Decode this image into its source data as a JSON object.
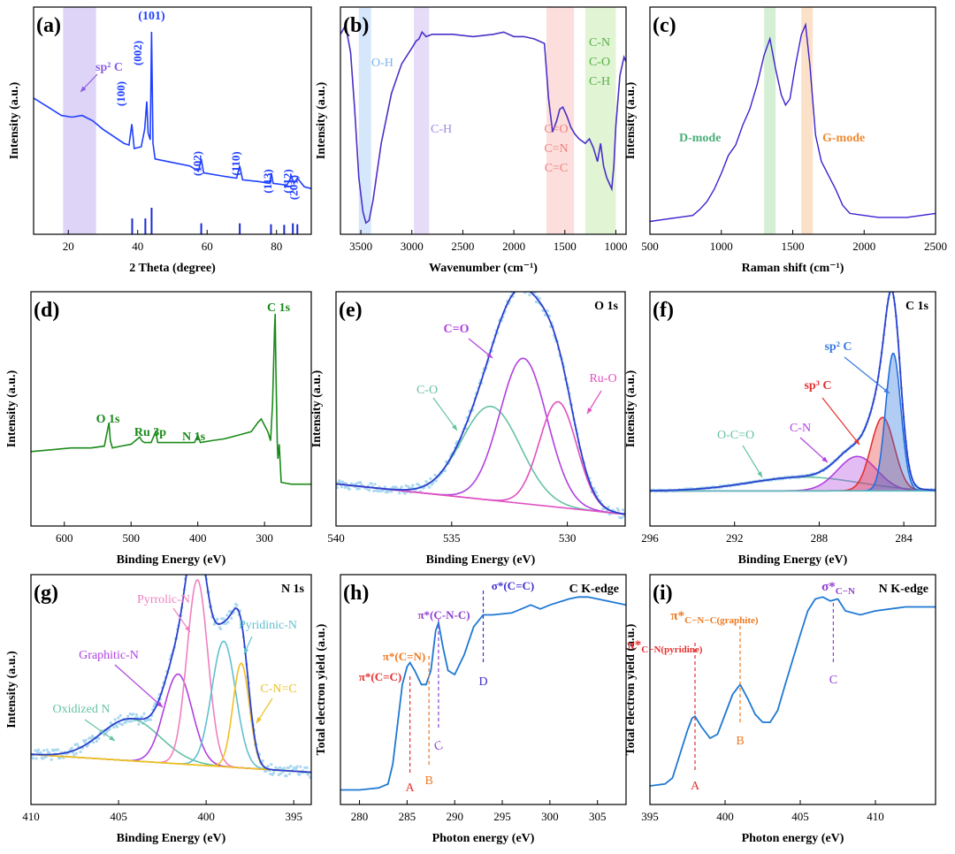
{
  "colors": {
    "blue_xrd": "#1f3fff",
    "purple_ftir": "#4a2fc8",
    "purple_raman": "#3c1fd0",
    "green_xps": "#1a8a1a",
    "envelope": "#2a3fd0",
    "raw_dots": "#a9d8f0",
    "teal": "#66c2a5",
    "violet": "#b040e0",
    "magenta": "#e050c0",
    "pink": "#f080c0",
    "cyan": "#60c0d0",
    "yellow": "#f0c020",
    "red": "#e53030",
    "orange": "#f07820",
    "xas_blue": "#1f78d4",
    "label_blue": "#3a7be0"
  },
  "chart_data": [
    {
      "panel": "(a)",
      "type": "line",
      "xlabel": "2 Theta (degree)",
      "ylabel": "Intensity (a.u.)",
      "xlim": [
        10,
        90
      ],
      "xticks": [
        20,
        40,
        60,
        80
      ],
      "band": {
        "range": [
          18.5,
          28
        ],
        "color": "#d8ccf6"
      },
      "band_label": "sp² C",
      "series": [
        {
          "x": [
            10,
            14,
            18,
            21,
            24,
            27,
            30,
            33,
            36,
            37.5,
            38.3,
            39,
            41,
            42,
            42.6,
            43,
            43.6,
            44.0,
            44.4,
            45,
            50,
            55,
            57.5,
            58.3,
            59,
            65,
            68.5,
            69.4,
            70.2,
            75,
            78,
            78.5,
            79,
            83,
            84.3,
            85,
            86,
            88,
            90
          ],
          "y": [
            0.62,
            0.57,
            0.52,
            0.51,
            0.52,
            0.49,
            0.44,
            0.4,
            0.36,
            0.35,
            0.47,
            0.33,
            0.34,
            0.44,
            0.6,
            0.42,
            0.38,
            1.0,
            0.36,
            0.27,
            0.25,
            0.23,
            0.2,
            0.27,
            0.19,
            0.17,
            0.16,
            0.23,
            0.15,
            0.14,
            0.13,
            0.19,
            0.13,
            0.12,
            0.17,
            0.13,
            0.16,
            0.11,
            0.1
          ]
        }
      ],
      "peak_labels": [
        {
          "text": "(100)",
          "x": 38.3
        },
        {
          "text": "(002)",
          "x": 42.6
        },
        {
          "text": "(101)",
          "x": 44.0
        },
        {
          "text": "(102)",
          "x": 58.3
        },
        {
          "text": "(110)",
          "x": 69.4
        },
        {
          "text": "(113)",
          "x": 78.5
        },
        {
          "text": "(112)",
          "x": 84.3
        },
        {
          "text": "(201)",
          "x": 86.0
        }
      ],
      "reference_sticks": [
        {
          "x": 38.4,
          "h": 0.45
        },
        {
          "x": 42.2,
          "h": 0.45
        },
        {
          "x": 44.0,
          "h": 1.0
        },
        {
          "x": 58.3,
          "h": 0.2
        },
        {
          "x": 69.4,
          "h": 0.2
        },
        {
          "x": 78.4,
          "h": 0.15
        },
        {
          "x": 82.2,
          "h": 0.12
        },
        {
          "x": 84.7,
          "h": 0.2
        },
        {
          "x": 86.0,
          "h": 0.15
        }
      ]
    },
    {
      "panel": "(b)",
      "type": "line",
      "xlabel": "Wavenumber (cm⁻¹)",
      "ylabel": "Intensity (a.u.)",
      "xlim": [
        3700,
        900
      ],
      "xticks": [
        3500,
        3000,
        2500,
        2000,
        1500,
        1000
      ],
      "bands": [
        {
          "range": [
            3520,
            3400
          ],
          "color": "#cfe3fb",
          "label": "O-H"
        },
        {
          "range": [
            2980,
            2830
          ],
          "color": "#e2d6f7",
          "label": "C-H"
        },
        {
          "range": [
            1680,
            1410
          ],
          "color": "#fbd9d6",
          "label": [
            "C=O",
            "C=N",
            "C=C"
          ]
        },
        {
          "range": [
            1300,
            1000
          ],
          "color": "#dcf2cc",
          "label": [
            "C-N",
            "C-O",
            "C-H"
          ]
        }
      ],
      "series": [
        {
          "x": [
            3700,
            3650,
            3600,
            3560,
            3520,
            3480,
            3450,
            3420,
            3380,
            3300,
            3200,
            3100,
            3000,
            2960,
            2930,
            2900,
            2860,
            2800,
            2600,
            2400,
            2200,
            2100,
            2000,
            1900,
            1800,
            1700,
            1660,
            1620,
            1580,
            1550,
            1520,
            1480,
            1440,
            1400,
            1360,
            1300,
            1260,
            1220,
            1180,
            1150,
            1120,
            1090,
            1060,
            1040,
            1020,
            1000,
            960,
            920,
            900
          ],
          "y": [
            0.88,
            0.92,
            0.8,
            0.55,
            0.25,
            0.1,
            0.05,
            0.06,
            0.15,
            0.4,
            0.62,
            0.75,
            0.82,
            0.85,
            0.86,
            0.89,
            0.87,
            0.88,
            0.88,
            0.87,
            0.88,
            0.89,
            0.87,
            0.87,
            0.86,
            0.84,
            0.6,
            0.45,
            0.5,
            0.55,
            0.56,
            0.52,
            0.47,
            0.44,
            0.42,
            0.4,
            0.42,
            0.38,
            0.32,
            0.4,
            0.3,
            0.25,
            0.22,
            0.2,
            0.3,
            0.48,
            0.7,
            0.78,
            0.76
          ]
        }
      ]
    },
    {
      "panel": "(c)",
      "type": "line",
      "xlabel": "Raman shift (cm⁻¹)",
      "ylabel": "Intensity (a.u.)",
      "xlim": [
        500,
        2500
      ],
      "xticks": [
        500,
        1000,
        1500,
        2000,
        2500
      ],
      "bands": [
        {
          "range": [
            1300,
            1380
          ],
          "color": "#cdeccd",
          "label": "D-mode",
          "label_color": "#4caf7a"
        },
        {
          "range": [
            1560,
            1640
          ],
          "color": "#fbdcc0",
          "label": "G-mode",
          "label_color": "#f08a30"
        }
      ],
      "series": [
        {
          "x": [
            500,
            600,
            700,
            800,
            850,
            900,
            950,
            1000,
            1050,
            1100,
            1150,
            1200,
            1250,
            1300,
            1340,
            1380,
            1420,
            1450,
            1480,
            1520,
            1560,
            1590,
            1620,
            1660,
            1700,
            1750,
            1800,
            1850,
            1900,
            2000,
            2100,
            2200,
            2300,
            2400,
            2500
          ],
          "y": [
            0.02,
            0.03,
            0.04,
            0.05,
            0.08,
            0.12,
            0.18,
            0.26,
            0.35,
            0.4,
            0.5,
            0.58,
            0.7,
            0.85,
            0.93,
            0.78,
            0.65,
            0.6,
            0.63,
            0.8,
            0.95,
            1.0,
            0.8,
            0.45,
            0.32,
            0.25,
            0.18,
            0.1,
            0.06,
            0.05,
            0.04,
            0.04,
            0.04,
            0.05,
            0.06
          ]
        }
      ]
    },
    {
      "panel": "(d)",
      "type": "line",
      "xlabel": "Binding Energy (eV)",
      "ylabel": "Intensity (a.u.)",
      "xlim": [
        650,
        230
      ],
      "xticks": [
        600,
        500,
        400,
        300
      ],
      "series": [
        {
          "x": [
            650,
            620,
            590,
            560,
            540,
            533,
            531,
            528,
            515,
            500,
            487,
            484,
            480,
            470,
            463,
            460,
            455,
            440,
            420,
            405,
            400,
            396,
            380,
            360,
            340,
            320,
            310,
            305,
            295,
            291,
            288,
            285,
            284,
            283,
            281,
            280,
            278,
            275,
            260,
            240,
            230
          ],
          "y": [
            0.24,
            0.25,
            0.26,
            0.26,
            0.27,
            0.4,
            0.3,
            0.26,
            0.27,
            0.28,
            0.32,
            0.3,
            0.29,
            0.29,
            0.35,
            0.29,
            0.29,
            0.29,
            0.29,
            0.29,
            0.33,
            0.29,
            0.3,
            0.31,
            0.33,
            0.35,
            0.4,
            0.42,
            0.35,
            0.3,
            0.5,
            0.92,
            1.0,
            0.7,
            0.3,
            0.2,
            0.28,
            0.07,
            0.06,
            0.06,
            0.06
          ]
        }
      ],
      "peak_labels": [
        {
          "text": "C 1s",
          "x": 284
        },
        {
          "text": "O 1s",
          "x": 531
        },
        {
          "text": "Ru 3p",
          "x": 470
        },
        {
          "text": "N 1s",
          "x": 400
        }
      ]
    },
    {
      "panel": "(e)",
      "type": "line",
      "title": "O 1s",
      "xlabel": "Binding Energy (eV)",
      "ylabel": "Intensity (a.u.)",
      "xlim": [
        540,
        527.5
      ],
      "xticks": [
        540,
        535,
        530
      ],
      "baseline": {
        "x": [
          540,
          527.5
        ],
        "y": [
          0.18,
          0.05
        ]
      },
      "components": [
        {
          "name": "C-O",
          "center": 533.3,
          "fwhm": 3.0,
          "height": 0.4,
          "color": "#66c2a5"
        },
        {
          "name": "C=O",
          "center": 531.9,
          "fwhm": 2.4,
          "height": 0.62,
          "color": "#b040e0"
        },
        {
          "name": "Ru-O",
          "center": 530.4,
          "fwhm": 1.9,
          "height": 0.45,
          "color": "#e050c0"
        }
      ]
    },
    {
      "panel": "(f)",
      "type": "line",
      "title": "C 1s",
      "xlabel": "Binding Energy (eV)",
      "ylabel": "Intensity (a.u.)",
      "xlim": [
        296,
        282.5
      ],
      "xticks": [
        296,
        292,
        288,
        284
      ],
      "baseline": {
        "x": [
          296,
          282.5
        ],
        "y": [
          0.0,
          0.0
        ]
      },
      "components": [
        {
          "name": "O-C=O",
          "center": 288.7,
          "fwhm": 6.0,
          "height": 0.06,
          "color": "#66c2a5"
        },
        {
          "name": "C-N",
          "center": 286.2,
          "fwhm": 2.2,
          "height": 0.15,
          "color": "#b040e0"
        },
        {
          "name": "sp³ C",
          "center": 285.0,
          "fwhm": 1.3,
          "height": 0.32,
          "color": "#e53030"
        },
        {
          "name": "sp² C",
          "center": 284.5,
          "fwhm": 0.85,
          "height": 0.6,
          "color": "#1f6fe0"
        }
      ]
    },
    {
      "panel": "(g)",
      "type": "line",
      "title": "N 1s",
      "xlabel": "Binding Energy (eV)",
      "ylabel": "Intensity (a.u.)",
      "xlim": [
        410,
        394
      ],
      "xticks": [
        410,
        405,
        400,
        395
      ],
      "baseline": {
        "x": [
          410,
          394
        ],
        "y": [
          0.06,
          0.0
        ]
      },
      "components": [
        {
          "name": "Oxidized N",
          "center": 404.3,
          "fwhm": 4.0,
          "height": 0.14,
          "color": "#66c2a5"
        },
        {
          "name": "Graphitic-N",
          "center": 401.6,
          "fwhm": 1.9,
          "height": 0.3,
          "color": "#b040e0"
        },
        {
          "name": "Pyrrolic-N",
          "center": 400.5,
          "fwhm": 1.4,
          "height": 0.62,
          "color": "#f080c0"
        },
        {
          "name": "Pyridinic-N",
          "center": 399.0,
          "fwhm": 1.6,
          "height": 0.42,
          "color": "#60c0d0"
        },
        {
          "name": "C-N=C",
          "center": 398.0,
          "fwhm": 1.1,
          "height": 0.35,
          "color": "#f0c020"
        }
      ]
    },
    {
      "panel": "(h)",
      "type": "line",
      "title": "C K-edge",
      "xlabel": "Photon energy (eV)",
      "ylabel": "Total electron yield (a.u.)",
      "xlim": [
        278,
        308
      ],
      "xticks": [
        280,
        285,
        290,
        295,
        300,
        305
      ],
      "series": [
        {
          "x": [
            278,
            280,
            282,
            283,
            283.5,
            284,
            284.5,
            285,
            285.3,
            285.8,
            286.5,
            287,
            287.5,
            288,
            288.3,
            288.8,
            289.3,
            290,
            291,
            292,
            293,
            294,
            296,
            298,
            299,
            300,
            302,
            303,
            304,
            306,
            308
          ],
          "y": [
            0.02,
            0.02,
            0.03,
            0.05,
            0.15,
            0.35,
            0.55,
            0.64,
            0.66,
            0.62,
            0.55,
            0.55,
            0.62,
            0.82,
            0.86,
            0.73,
            0.62,
            0.6,
            0.7,
            0.84,
            0.9,
            0.9,
            0.91,
            0.95,
            0.93,
            0.95,
            0.98,
            0.99,
            0.99,
            0.97,
            0.95
          ]
        }
      ],
      "markers": [
        {
          "letter": "A",
          "label": "π*(C=C)",
          "x": 285.3,
          "color": "#e53030"
        },
        {
          "letter": "B",
          "label": "π*(C=N)",
          "x": 287.3,
          "color": "#f07820"
        },
        {
          "letter": "C",
          "label": "π*(C-N-C)",
          "x": 288.3,
          "color": "#9040d0"
        },
        {
          "letter": "D",
          "label": "σ*(C=C)",
          "x": 293.0,
          "color": "#4030d0"
        }
      ]
    },
    {
      "panel": "(i)",
      "type": "line",
      "title": "N K-edge",
      "xlabel": "Photon energy (eV)",
      "ylabel": "Total electron yield (a.u.)",
      "xlim": [
        395,
        414
      ],
      "xticks": [
        395,
        400,
        405,
        410
      ],
      "series": [
        {
          "x": [
            395,
            396,
            396.5,
            397,
            397.5,
            397.8,
            398,
            398.4,
            399,
            399.5,
            400,
            400.5,
            401,
            401.5,
            402,
            402.5,
            403,
            403.5,
            404,
            405,
            405.5,
            406,
            406.5,
            407,
            407.5,
            408,
            409,
            410,
            412,
            414
          ],
          "y": [
            0.04,
            0.05,
            0.08,
            0.2,
            0.32,
            0.38,
            0.39,
            0.34,
            0.28,
            0.3,
            0.4,
            0.5,
            0.55,
            0.48,
            0.4,
            0.36,
            0.36,
            0.42,
            0.55,
            0.8,
            0.92,
            0.98,
            0.99,
            0.97,
            0.98,
            0.92,
            0.9,
            0.92,
            0.94,
            0.94
          ]
        }
      ],
      "markers": [
        {
          "letter": "A",
          "label": "π*",
          "sub": "C−N(pyridine)",
          "x": 398.0,
          "color": "#e53030"
        },
        {
          "letter": "B",
          "label": "π*",
          "sub": "C−N−C(graphite)",
          "x": 401.0,
          "color": "#f07820"
        },
        {
          "letter": "C",
          "label": "σ*",
          "sub": "C−N",
          "x": 407.2,
          "color": "#9040d0"
        }
      ]
    }
  ]
}
